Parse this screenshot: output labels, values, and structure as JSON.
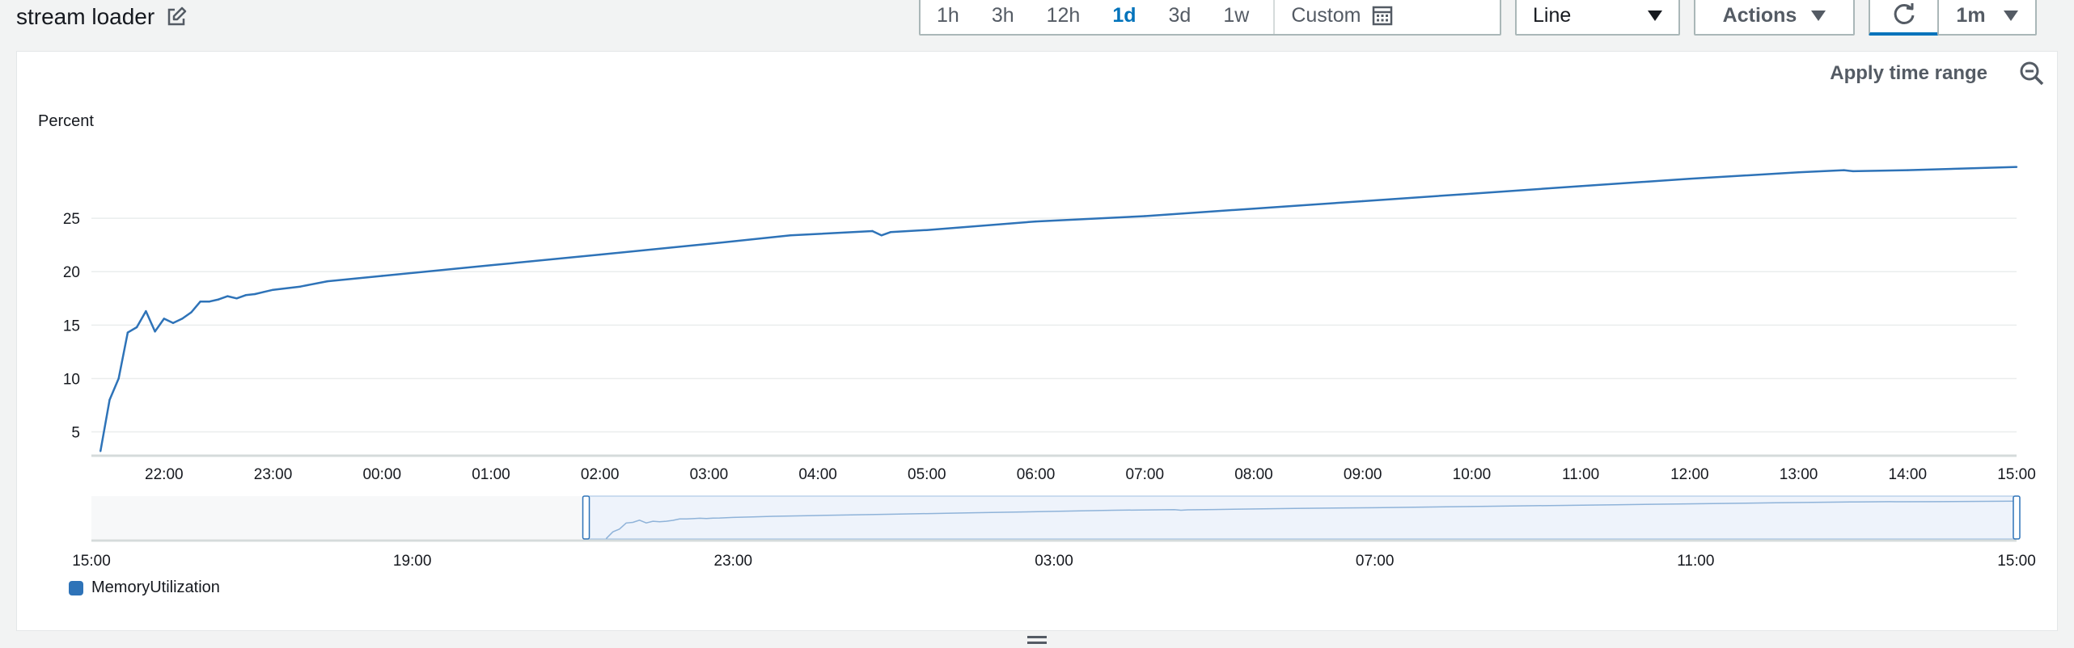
{
  "header": {
    "title": "stream loader",
    "time_ranges": [
      "1h",
      "3h",
      "12h",
      "1d",
      "3d",
      "1w"
    ],
    "active_range": "1d",
    "custom_label": "Custom",
    "chart_type": "Line",
    "actions_label": "Actions",
    "interval": "1m"
  },
  "panel": {
    "apply_label": "Apply time range"
  },
  "colors": {
    "series": "#2e73b8",
    "accent": "#0073bb"
  },
  "chart_data": {
    "type": "line",
    "ylabel": "Percent",
    "yticks": [
      5,
      10,
      15,
      20,
      25
    ],
    "xticks": [
      "22:00",
      "23:00",
      "00:00",
      "01:00",
      "02:00",
      "03:00",
      "04:00",
      "05:00",
      "06:00",
      "07:00",
      "08:00",
      "09:00",
      "10:00",
      "11:00",
      "12:00",
      "13:00",
      "14:00",
      "15:00"
    ],
    "xlim": [
      "21:20",
      "15:00"
    ],
    "ylim": [
      3,
      30
    ],
    "grid": true,
    "legend_position": "bottom-left",
    "series": [
      {
        "name": "MemoryUtilization",
        "color": "#2e73b8",
        "x": [
          "21:25",
          "21:30",
          "21:35",
          "21:40",
          "21:45",
          "21:50",
          "21:55",
          "22:00",
          "22:05",
          "22:10",
          "22:15",
          "22:20",
          "22:25",
          "22:30",
          "22:35",
          "22:40",
          "22:45",
          "22:50",
          "22:55",
          "23:00",
          "23:15",
          "23:30",
          "00:00",
          "01:00",
          "02:00",
          "03:00",
          "03:45",
          "04:30",
          "04:35",
          "04:40",
          "05:00",
          "06:00",
          "07:00",
          "08:00",
          "09:00",
          "10:00",
          "11:00",
          "12:00",
          "13:00",
          "13:25",
          "13:30",
          "14:00",
          "15:00"
        ],
        "y": [
          3.2,
          8,
          10,
          14.3,
          14.8,
          16.3,
          14.4,
          15.6,
          15.2,
          15.6,
          16.2,
          17.2,
          17.2,
          17.4,
          17.7,
          17.5,
          17.8,
          17.9,
          18.1,
          18.3,
          18.6,
          19.1,
          19.6,
          20.6,
          21.6,
          22.6,
          23.4,
          23.8,
          23.4,
          23.7,
          23.9,
          24.7,
          25.2,
          25.9,
          26.6,
          27.3,
          28.0,
          28.7,
          29.3,
          29.5,
          29.4,
          29.5,
          29.8
        ]
      }
    ],
    "navigator": {
      "xticks": [
        "15:00",
        "19:00",
        "23:00",
        "03:00",
        "07:00",
        "11:00",
        "15:00"
      ],
      "selection": [
        "21:10",
        "15:00"
      ]
    }
  }
}
